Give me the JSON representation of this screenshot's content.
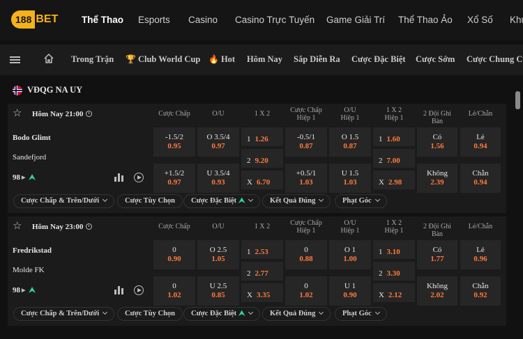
{
  "logo": {
    "number": "188",
    "brand": "BET"
  },
  "top_nav": [
    {
      "label": "Thể Thao",
      "active": true
    },
    {
      "label": "Esports"
    },
    {
      "label": "Casino"
    },
    {
      "label": "Casino Trực Tuyến"
    },
    {
      "label": "Game Giải Trí"
    },
    {
      "label": "Thể Thao Ảo"
    },
    {
      "label": "Xổ Số"
    },
    {
      "label": "Khu"
    }
  ],
  "sub_nav": [
    {
      "label": "Trong Trận"
    },
    {
      "label": "Club World Cup",
      "icon": "trophy-icon",
      "glyph": "🏆"
    },
    {
      "label": "Hot",
      "icon": "fire-icon",
      "glyph": "🔥"
    },
    {
      "label": "Hôm Nay"
    },
    {
      "label": "Sắp Diễn Ra"
    },
    {
      "label": "Cược Đặc Biệt"
    },
    {
      "label": "Cược Sớm"
    },
    {
      "label": "Cược Chung Cu"
    }
  ],
  "league": {
    "name": "VĐQG NA UY",
    "flag": "norway-flag-icon"
  },
  "columns": [
    {
      "l1": "Cược Chấp",
      "l2": ""
    },
    {
      "l1": "O/U",
      "l2": ""
    },
    {
      "l1": "1 X 2",
      "l2": ""
    },
    {
      "l1": "Cược Chấp",
      "l2": "Hiệp 1"
    },
    {
      "l1": "O/U",
      "l2": "Hiệp 1"
    },
    {
      "l1": "1 X 2",
      "l2": "Hiệp 1"
    },
    {
      "l1": "2 Đội Ghi Bàn",
      "l2": ""
    },
    {
      "l1": "Lẻ/Chẵn",
      "l2": ""
    }
  ],
  "matches": [
    {
      "time": "Hôm Nay 21:00",
      "home": "Bodo Glimt",
      "away": "Sandefjord",
      "market_count": "98",
      "handicap": [
        {
          "line": "-1.5/2",
          "odds": "0.95"
        },
        {
          "line": "+1.5/2",
          "odds": "0.97"
        }
      ],
      "ou": [
        {
          "line": "O 3.5/4",
          "odds": "0.97"
        },
        {
          "line": "U 3.5/4",
          "odds": "0.93"
        }
      ],
      "x12": [
        {
          "k": "1",
          "v": "1.26"
        },
        {
          "k": "2",
          "v": "9.20"
        },
        {
          "k": "X",
          "v": "6.70"
        }
      ],
      "handicap_h1": [
        {
          "line": "-0.5/1",
          "odds": "0.87"
        },
        {
          "line": "+0.5/1",
          "odds": "1.03"
        }
      ],
      "ou_h1": [
        {
          "line": "O 1.5",
          "odds": "0.87"
        },
        {
          "line": "U 1.5",
          "odds": "1.03"
        }
      ],
      "x12_h1": [
        {
          "k": "1",
          "v": "1.60"
        },
        {
          "k": "2",
          "v": "7.00"
        },
        {
          "k": "X",
          "v": "2.98"
        }
      ],
      "btts": [
        {
          "line": "Có",
          "odds": "1.56"
        },
        {
          "line": "Không",
          "odds": "2.39"
        }
      ],
      "oddeven": [
        {
          "line": "Lẻ",
          "odds": "0.94"
        },
        {
          "line": "Chẵn",
          "odds": "0.94"
        }
      ],
      "pills": [
        "Cược Chấp & Trên/Dưới",
        "Cược Tùy Chọn",
        "Cược Đặc Biệt",
        "Kết Quả Đúng",
        "Phạt Góc"
      ]
    },
    {
      "time": "Hôm Nay 23:00",
      "home": "Fredrikstad",
      "away": "Molde FK",
      "market_count": "98",
      "handicap": [
        {
          "line": "0",
          "odds": "0.90"
        },
        {
          "line": "0",
          "odds": "1.02"
        }
      ],
      "ou": [
        {
          "line": "O 2.5",
          "odds": "1.05"
        },
        {
          "line": "U 2.5",
          "odds": "0.85"
        }
      ],
      "x12": [
        {
          "k": "1",
          "v": "2.53"
        },
        {
          "k": "2",
          "v": "2.77"
        },
        {
          "k": "X",
          "v": "3.35"
        }
      ],
      "handicap_h1": [
        {
          "line": "0",
          "odds": "0.88"
        },
        {
          "line": "0",
          "odds": "1.02"
        }
      ],
      "ou_h1": [
        {
          "line": "O 1",
          "odds": "1.00"
        },
        {
          "line": "U 1",
          "odds": "0.90"
        }
      ],
      "x12_h1": [
        {
          "k": "1",
          "v": "3.10"
        },
        {
          "k": "2",
          "v": "3.30"
        },
        {
          "k": "X",
          "v": "2.12"
        }
      ],
      "btts": [
        {
          "line": "Có",
          "odds": "1.77"
        },
        {
          "line": "Không",
          "odds": "2.02"
        }
      ],
      "oddeven": [
        {
          "line": "Lẻ",
          "odds": "0.96"
        },
        {
          "line": "Chẵn",
          "odds": "0.92"
        }
      ],
      "pills": [
        "Cược Chấp & Trên/Dưới",
        "Cược Tùy Chọn",
        "Cược Đặc Biệt",
        "Kết Quả Đúng",
        "Phạt Góc"
      ]
    }
  ],
  "colors": {
    "accent": "#f6b21a",
    "odds": "#ff7a3c",
    "trend": "#2bd6a4",
    "cell": "#262626",
    "card": "#1b1b1b"
  }
}
